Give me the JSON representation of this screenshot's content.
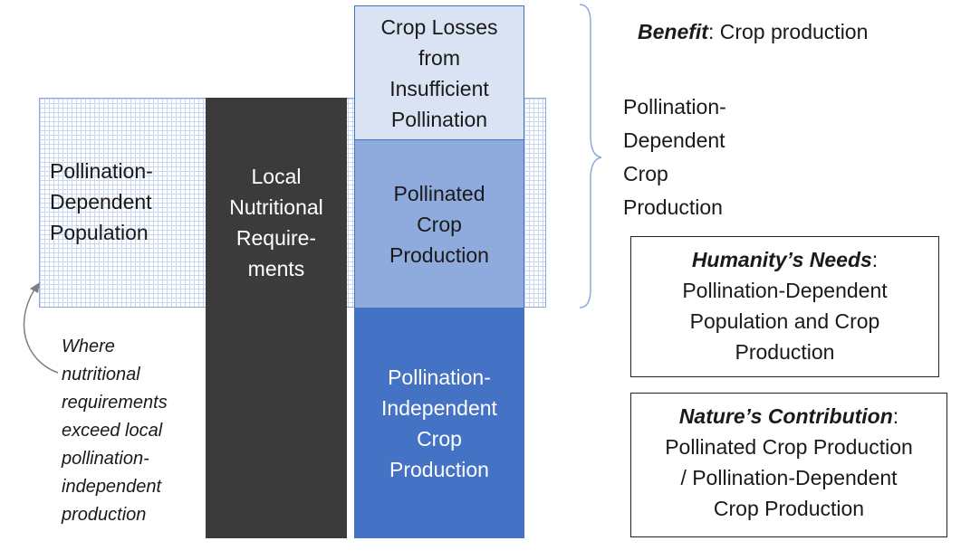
{
  "left_panel": {
    "population_lines": [
      "Pollination-",
      "Dependent",
      "Population"
    ],
    "where_lines": [
      "Where",
      "nutritional",
      "requirements",
      "exceed local",
      "pollination-",
      "independent",
      "production"
    ]
  },
  "local_requirements_lines": [
    "Local",
    "Nutritional",
    "Require-",
    "ments"
  ],
  "crop_stack": {
    "losses_lines": [
      "Crop Losses",
      "from",
      "Insufficient",
      "Pollination"
    ],
    "pollinated_lines": [
      "Pollinated",
      "Crop",
      "Production"
    ],
    "independent_lines": [
      "Pollination-",
      "Independent",
      "Crop",
      "Production"
    ]
  },
  "benefit": {
    "label": "Benefit",
    "sep": ":  ",
    "text": "Crop production"
  },
  "pollination_dependent_crop_lines": [
    "Pollination-",
    "Dependent",
    "Crop",
    "Production"
  ],
  "humanity_needs": {
    "head": "Humanity’s Needs",
    "colon": ":",
    "lines": [
      "Pollination-Dependent",
      "Population and Crop",
      "Production"
    ]
  },
  "nature_contribution": {
    "head": "Nature’s Contribution",
    "colon": ":",
    "lines": [
      "Pollinated Crop Production",
      "/ Pollination-Dependent",
      "Crop Production"
    ]
  },
  "colors": {
    "grid_line": "#c9d6ef",
    "dark_block": "#3b3b3b",
    "losses_fill": "#dae3f3",
    "pollinated_fill": "#8faadc",
    "independent_fill": "#4472c4",
    "brace": "#8ea9db"
  }
}
